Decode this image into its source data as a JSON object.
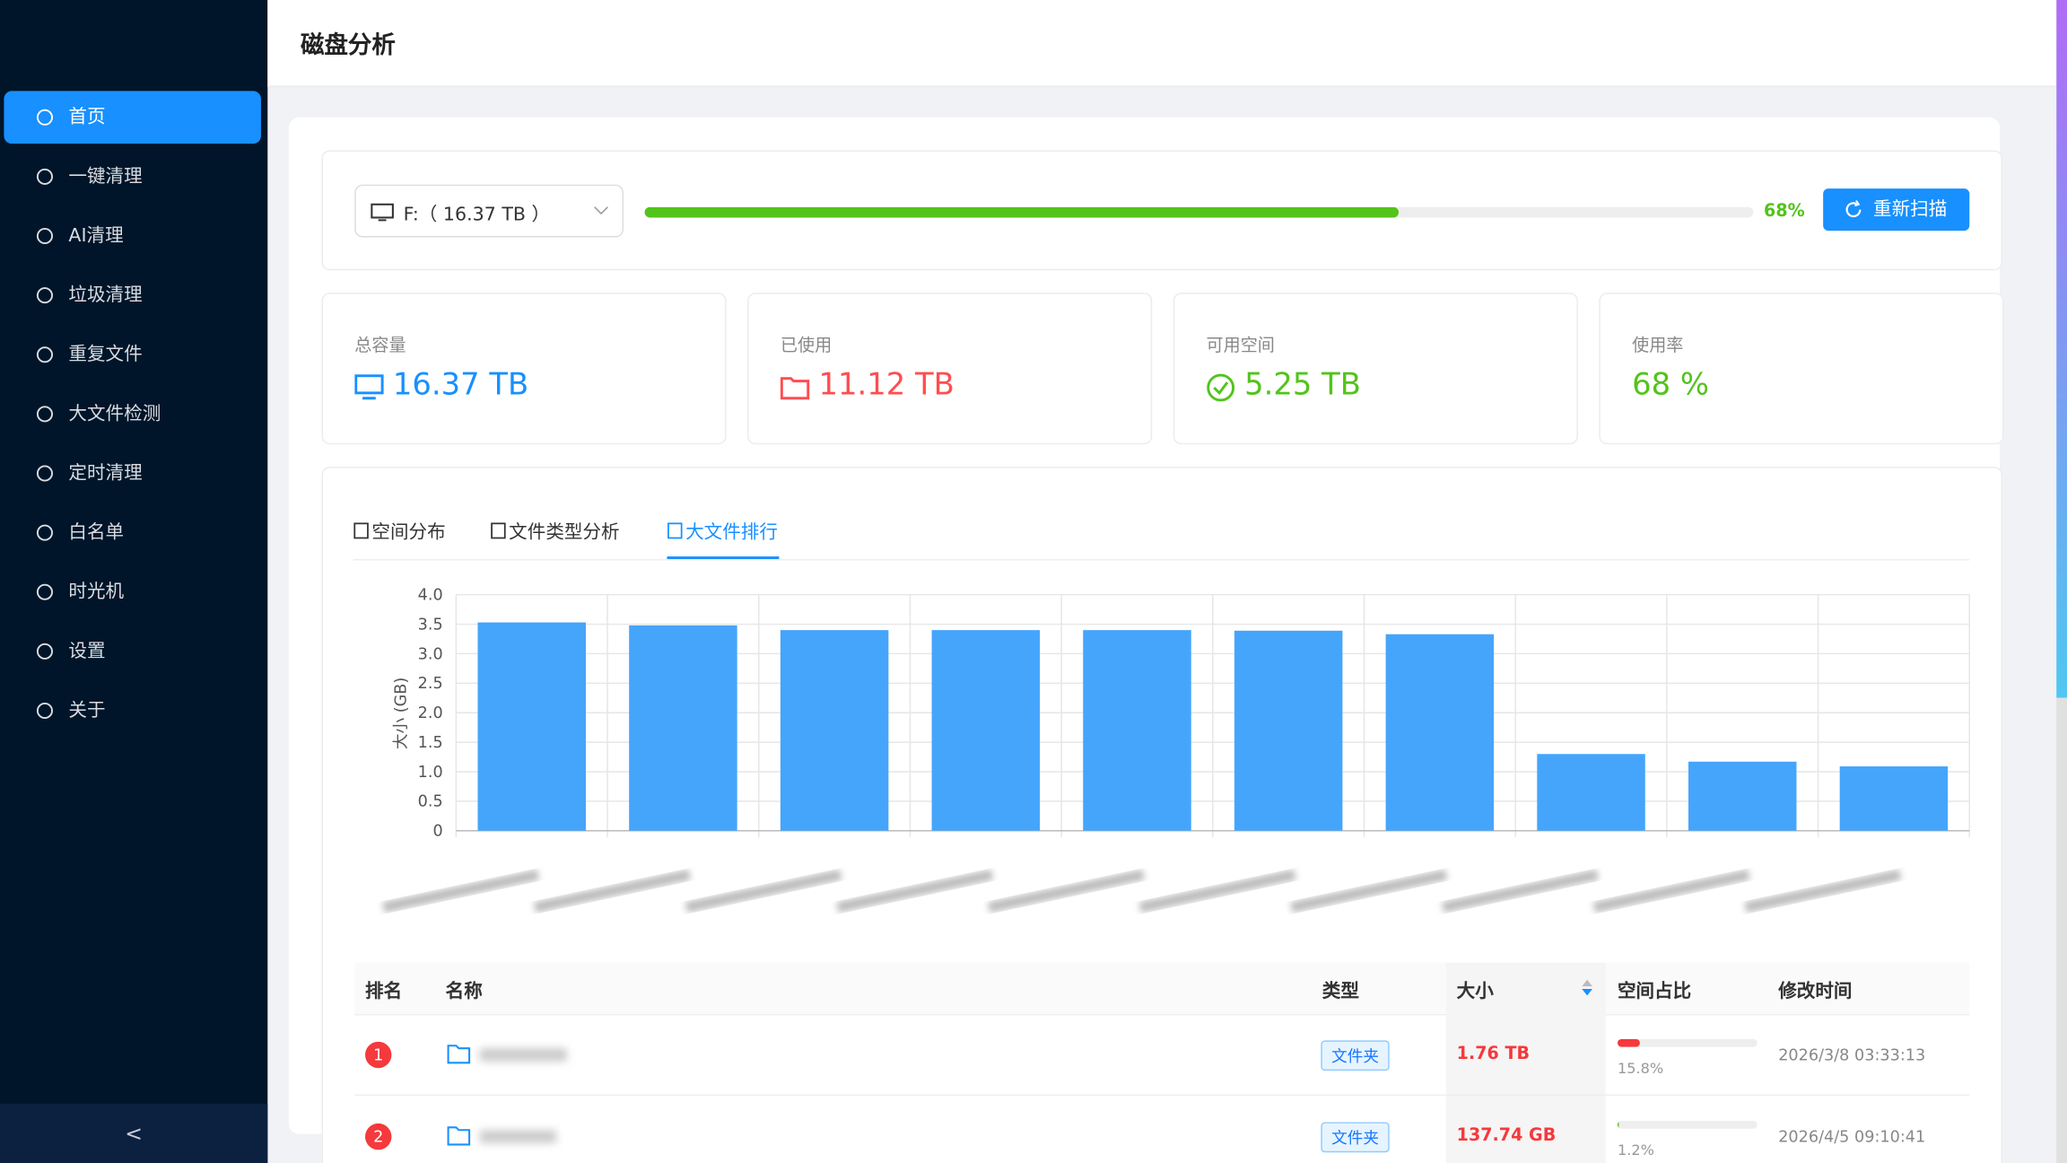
{
  "sidebar": {
    "menu": [
      "首页",
      "一键清理",
      "AI清理",
      "垃圾清理",
      "重复文件",
      "大文件检测",
      "定时清理",
      "白名单",
      "时光机",
      "设置",
      "关于"
    ],
    "collapse": "<"
  },
  "header": {
    "title": "磁盘分析"
  },
  "disk": {
    "selected": "F:（ 16.37 TB ）",
    "usage": {
      "value": 68,
      "label": "68%"
    },
    "rescan": "重新扫描"
  },
  "stats": [
    {
      "label": "总容量",
      "value": "16.37 TB"
    },
    {
      "label": "已使用",
      "value": "11.12 TB"
    },
    {
      "label": "可用空间",
      "value": "5.25 TB"
    },
    {
      "label": "使用率",
      "value": "68 %"
    }
  ],
  "tabs": [
    "空间分布",
    "文件类型分析",
    "大文件排行"
  ],
  "chart_data": {
    "type": "bar",
    "ylabel": "大小 (GB)",
    "categories": [
      null,
      null,
      null,
      null,
      null,
      null,
      null,
      null,
      null,
      null
    ],
    "values": [
      3.53,
      3.48,
      3.4,
      3.4,
      3.4,
      3.39,
      3.33,
      1.3,
      1.17,
      1.09
    ],
    "color": "#45a5fb",
    "ylim": [
      0,
      4
    ],
    "yticks": [
      0,
      0.5,
      {
        "value": 1,
        "label": "1.0"
      },
      1.5,
      {
        "value": 2,
        "label": "2.0"
      },
      2.5,
      {
        "value": 3,
        "label": "3.0"
      },
      3.5,
      {
        "value": 4,
        "label": "4.0"
      }
    ],
    "grid": true
  },
  "table": {
    "columns": [
      "排名",
      "名称",
      "类型",
      "大小",
      "空间占比",
      "修改时间"
    ],
    "rows": [
      {
        "rank": 1,
        "type": "文件夹",
        "size": "1.76 TB",
        "share": {
          "value": 15.8,
          "label": "15.8%"
        },
        "time": "2026/3/8 03:33:13"
      },
      {
        "rank": 2,
        "type": "文件夹",
        "size": "137.74 GB",
        "share": {
          "value": 1.2,
          "label": "1.2%"
        },
        "time": "2026/4/5 09:10:41"
      }
    ]
  }
}
